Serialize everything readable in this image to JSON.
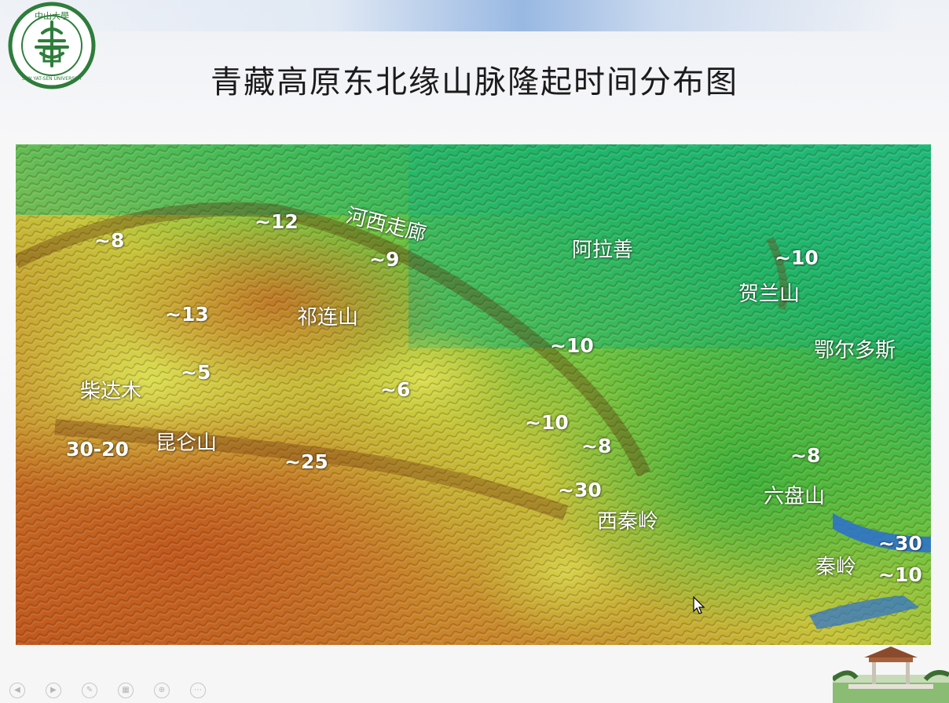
{
  "title": "青藏高原东北缘山脉隆起时间分布图",
  "logo": {
    "name": "sun-yat-sen-university-logo",
    "text_top": "中山大學",
    "text_ring": "SUN YAT-SEN UNIVERSITY",
    "color": "#2e7d3b"
  },
  "map": {
    "places": [
      {
        "id": "hexi",
        "text": "河西走廊"
      },
      {
        "id": "alashan",
        "text": "阿拉善"
      },
      {
        "id": "helan",
        "text": "贺兰山"
      },
      {
        "id": "ordos",
        "text": "鄂尔多斯"
      },
      {
        "id": "qilian",
        "text": "祁连山"
      },
      {
        "id": "qaidam",
        "text": "柴达木"
      },
      {
        "id": "kunlun",
        "text": "昆仑山"
      },
      {
        "id": "xiqinling",
        "text": "西秦岭"
      },
      {
        "id": "liupan",
        "text": "六盘山"
      },
      {
        "id": "qinling",
        "text": "秦岭"
      }
    ],
    "ages": [
      {
        "id": "a1",
        "text": "~8"
      },
      {
        "id": "a2",
        "text": "~12"
      },
      {
        "id": "a3",
        "text": "~9"
      },
      {
        "id": "a4",
        "text": "~10"
      },
      {
        "id": "a5",
        "text": "~13"
      },
      {
        "id": "a6",
        "text": "~10"
      },
      {
        "id": "a7",
        "text": "~5"
      },
      {
        "id": "a8",
        "text": "~6"
      },
      {
        "id": "a9",
        "text": "~10"
      },
      {
        "id": "a10",
        "text": "~8"
      },
      {
        "id": "a11",
        "text": "30-20"
      },
      {
        "id": "a12",
        "text": "~25"
      },
      {
        "id": "a13",
        "text": "~8"
      },
      {
        "id": "a14",
        "text": "~30"
      },
      {
        "id": "a15",
        "text": "~30"
      },
      {
        "id": "a16",
        "text": "~10"
      }
    ],
    "colors": {
      "lowland": "#2ba94a",
      "plain": "#1dbf8e",
      "basin": "#c9d23e",
      "highland": "#c87a2a",
      "mountain": "#b4561f",
      "water": "#2a6fd1"
    }
  }
}
